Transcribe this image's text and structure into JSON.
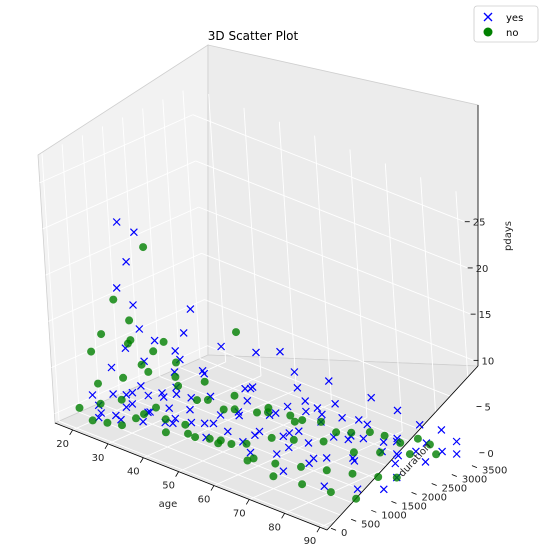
{
  "chart_data": {
    "type": "scatter",
    "title": "3D Scatter Plot",
    "xlabel": "age",
    "ylabel": "duration",
    "zlabel": "pdays",
    "x_ticks": [
      "20",
      "30",
      "40",
      "50",
      "60",
      "70",
      "80",
      "90"
    ],
    "y_ticks": [
      "0",
      "500",
      "1000",
      "1500",
      "2000",
      "2500",
      "3000",
      "3500"
    ],
    "z_ticks": [
      "0",
      "5",
      "10",
      "15",
      "20",
      "25"
    ],
    "xlim": [
      15,
      92
    ],
    "ylim": [
      -100,
      3700
    ],
    "zlim": [
      -1,
      28
    ],
    "legend_position": "top-right",
    "series": [
      {
        "name": "yes",
        "marker": "x",
        "color": "#0000ff",
        "points": [
          [
            27,
            700,
            21
          ],
          [
            33,
            600,
            21
          ],
          [
            29,
            700,
            17
          ],
          [
            30,
            350,
            15
          ],
          [
            35,
            300,
            14
          ],
          [
            45,
            850,
            14
          ],
          [
            44,
            500,
            10
          ],
          [
            60,
            1700,
            10
          ],
          [
            62,
            1900,
            6
          ],
          [
            55,
            1400,
            6
          ],
          [
            70,
            3000,
            4
          ],
          [
            75,
            3200,
            3
          ],
          [
            80,
            3300,
            2
          ],
          [
            85,
            3400,
            2
          ],
          [
            88,
            3500,
            1
          ],
          [
            78,
            2900,
            1
          ],
          [
            66,
            2600,
            2
          ],
          [
            58,
            2400,
            3
          ],
          [
            48,
            1800,
            4
          ],
          [
            40,
            1500,
            5
          ],
          [
            35,
            1200,
            5
          ],
          [
            30,
            900,
            6
          ],
          [
            26,
            800,
            7
          ],
          [
            24,
            600,
            5
          ],
          [
            38,
            1100,
            7
          ],
          [
            42,
            1300,
            6
          ],
          [
            52,
            1600,
            5
          ],
          [
            65,
            2200,
            3
          ],
          [
            72,
            2700,
            2
          ],
          [
            50,
            1000,
            3
          ],
          [
            45,
            700,
            2
          ],
          [
            40,
            600,
            3
          ],
          [
            35,
            500,
            2
          ],
          [
            30,
            400,
            2
          ],
          [
            28,
            300,
            1
          ],
          [
            25,
            200,
            1
          ],
          [
            32,
            800,
            1
          ],
          [
            38,
            900,
            1
          ],
          [
            44,
            1100,
            1
          ],
          [
            55,
            1500,
            1
          ],
          [
            60,
            1800,
            1
          ],
          [
            68,
            2200,
            1
          ],
          [
            73,
            2500,
            1
          ],
          [
            77,
            2600,
            0
          ],
          [
            82,
            3000,
            0
          ],
          [
            86,
            3300,
            0
          ],
          [
            89,
            3400,
            0
          ],
          [
            84,
            3100,
            1
          ],
          [
            79,
            2800,
            1
          ],
          [
            63,
            2000,
            0
          ],
          [
            57,
            1900,
            0
          ],
          [
            47,
            1400,
            0
          ],
          [
            36,
            1000,
            0
          ],
          [
            31,
            700,
            0
          ],
          [
            27,
            500,
            0
          ],
          [
            23,
            300,
            0
          ],
          [
            22,
            400,
            1
          ],
          [
            26,
            900,
            2
          ],
          [
            34,
            1300,
            3
          ],
          [
            46,
            2000,
            2
          ],
          [
            54,
            2300,
            2
          ],
          [
            61,
            2500,
            1
          ],
          [
            67,
            2700,
            0
          ],
          [
            74,
            2900,
            0
          ],
          [
            80,
            2700,
            0
          ],
          [
            71,
            2300,
            1
          ],
          [
            64,
            1700,
            2
          ],
          [
            53,
            1200,
            3
          ],
          [
            43,
            900,
            4
          ],
          [
            37,
            700,
            4
          ],
          [
            29,
            500,
            3
          ],
          [
            33,
            300,
            3
          ],
          [
            41,
            400,
            2
          ],
          [
            49,
            700,
            1
          ],
          [
            56,
            1000,
            1
          ],
          [
            62,
            1300,
            0
          ],
          [
            69,
            1600,
            0
          ],
          [
            76,
            2000,
            0
          ],
          [
            83,
            2400,
            0
          ],
          [
            87,
            2800,
            0
          ],
          [
            39,
            1700,
            2
          ],
          [
            51,
            2100,
            1
          ],
          [
            59,
            2600,
            2
          ],
          [
            66,
            3000,
            1
          ],
          [
            43,
            1700,
            8
          ],
          [
            36,
            1400,
            9
          ],
          [
            31,
            1100,
            8
          ],
          [
            28,
            1000,
            9
          ],
          [
            47,
            2200,
            7
          ],
          [
            53,
            2600,
            5
          ],
          [
            58,
            3000,
            4
          ],
          [
            25,
            1200,
            2
          ],
          [
            29,
            1400,
            1
          ],
          [
            34,
            1600,
            0
          ],
          [
            42,
            2100,
            0
          ],
          [
            48,
            2500,
            0
          ],
          [
            52,
            2900,
            0
          ],
          [
            57,
            3200,
            1
          ],
          [
            24,
            100,
            3
          ],
          [
            30,
            100,
            4
          ],
          [
            39,
            200,
            5
          ],
          [
            46,
            300,
            6
          ],
          [
            55,
            400,
            4
          ],
          [
            64,
            500,
            2
          ],
          [
            72,
            600,
            1
          ],
          [
            80,
            900,
            0
          ],
          [
            86,
            1200,
            0
          ],
          [
            90,
            1500,
            0
          ],
          [
            88,
            2000,
            0
          ],
          [
            84,
            2400,
            1
          ],
          [
            62,
            800,
            3
          ],
          [
            68,
            1100,
            2
          ],
          [
            74,
            1500,
            1
          ],
          [
            78,
            1800,
            1
          ],
          [
            70,
            1400,
            0
          ]
        ]
      },
      {
        "name": "no",
        "marker": "o",
        "color": "#008000",
        "points": [
          [
            33,
            800,
            19
          ],
          [
            50,
            1500,
            11
          ],
          [
            27,
            500,
            13
          ],
          [
            30,
            600,
            11
          ],
          [
            36,
            900,
            9
          ],
          [
            24,
            400,
            9
          ],
          [
            22,
            300,
            7
          ],
          [
            28,
            700,
            8
          ],
          [
            34,
            500,
            7
          ],
          [
            40,
            800,
            6
          ],
          [
            46,
            1000,
            6
          ],
          [
            52,
            1200,
            5
          ],
          [
            58,
            1500,
            4
          ],
          [
            64,
            1800,
            3
          ],
          [
            70,
            2100,
            2
          ],
          [
            75,
            2500,
            2
          ],
          [
            80,
            2800,
            1
          ],
          [
            85,
            3100,
            1
          ],
          [
            25,
            200,
            2
          ],
          [
            30,
            300,
            3
          ],
          [
            35,
            400,
            2
          ],
          [
            40,
            500,
            2
          ],
          [
            45,
            600,
            1
          ],
          [
            50,
            700,
            1
          ],
          [
            55,
            800,
            1
          ],
          [
            60,
            900,
            0
          ],
          [
            65,
            1000,
            0
          ],
          [
            70,
            1200,
            0
          ],
          [
            75,
            1400,
            0
          ],
          [
            80,
            1600,
            0
          ],
          [
            85,
            1800,
            0
          ],
          [
            88,
            2000,
            0
          ],
          [
            20,
            100,
            1
          ],
          [
            23,
            150,
            0
          ],
          [
            26,
            250,
            0
          ],
          [
            29,
            350,
            0
          ],
          [
            32,
            450,
            1
          ],
          [
            38,
            650,
            0
          ],
          [
            44,
            850,
            0
          ],
          [
            49,
            1050,
            0
          ],
          [
            54,
            1250,
            0
          ],
          [
            59,
            1450,
            1
          ],
          [
            63,
            1650,
            1
          ],
          [
            68,
            1950,
            1
          ],
          [
            73,
            2250,
            0
          ],
          [
            77,
            2550,
            0
          ],
          [
            82,
            2850,
            0
          ],
          [
            86,
            3150,
            0
          ],
          [
            43,
            1300,
            3
          ],
          [
            37,
            1100,
            4
          ],
          [
            31,
            900,
            5
          ],
          [
            26,
            700,
            4
          ],
          [
            21,
            500,
            3
          ],
          [
            47,
            1600,
            2
          ],
          [
            53,
            1900,
            2
          ],
          [
            57,
            2200,
            1
          ],
          [
            61,
            2500,
            1
          ],
          [
            66,
            2800,
            0
          ],
          [
            72,
            3100,
            0
          ],
          [
            78,
            3400,
            0
          ],
          [
            41,
            200,
            4
          ],
          [
            48,
            300,
            3
          ],
          [
            56,
            400,
            2
          ],
          [
            63,
            500,
            1
          ],
          [
            69,
            600,
            0
          ],
          [
            76,
            700,
            0
          ],
          [
            83,
            800,
            0
          ],
          [
            89,
            900,
            0
          ],
          [
            35,
            1700,
            1
          ],
          [
            39,
            2000,
            0
          ],
          [
            45,
            2300,
            0
          ],
          [
            51,
            2600,
            0
          ],
          [
            28,
            1300,
            6
          ],
          [
            24,
            1100,
            7
          ],
          [
            32,
            1500,
            5
          ]
        ]
      }
    ]
  }
}
